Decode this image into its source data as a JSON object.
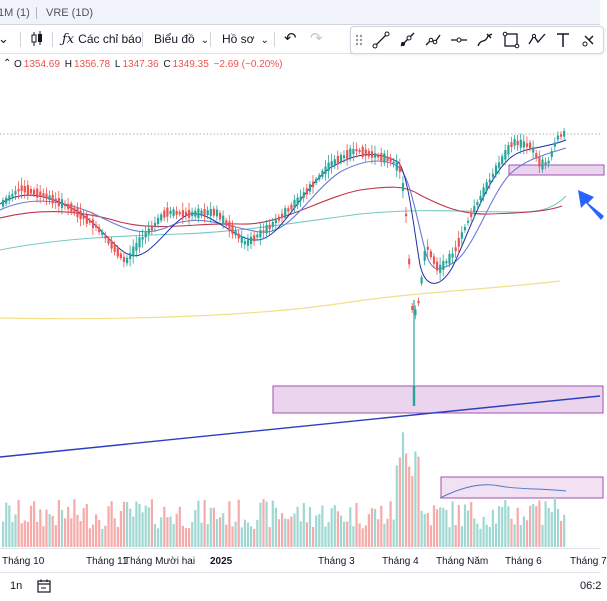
{
  "tabs": [
    "1M (1)",
    "VRE (1D)"
  ],
  "toolbar": {
    "indicators_label": "Các chỉ báo",
    "chart_label": "Biểu đồ",
    "profile_label": "Hồ sơ"
  },
  "ohlc": {
    "o_label": "O",
    "o": "1354.69",
    "h_label": "H",
    "h": "1356.78",
    "l_label": "L",
    "l": "1347.36",
    "c_label": "C",
    "c": "1349.35",
    "change": "−2.69 (−0.20%)"
  },
  "colors": {
    "up": "#26a69a",
    "down": "#ef5350",
    "zone_fill": "#e8cdea",
    "zone_border": "#a24fb3",
    "trendline": "#2b3fbf",
    "arrow": "#2962ff"
  },
  "xaxis": {
    "labels": [
      "Tháng 10",
      "Tháng 11",
      "Tháng Mười hai",
      "2025",
      "Tháng 3",
      "Tháng 4",
      "Tháng Năm",
      "Tháng 6",
      "Tháng 7"
    ]
  },
  "bottom": {
    "interval": "1n",
    "time": "06:2"
  }
}
